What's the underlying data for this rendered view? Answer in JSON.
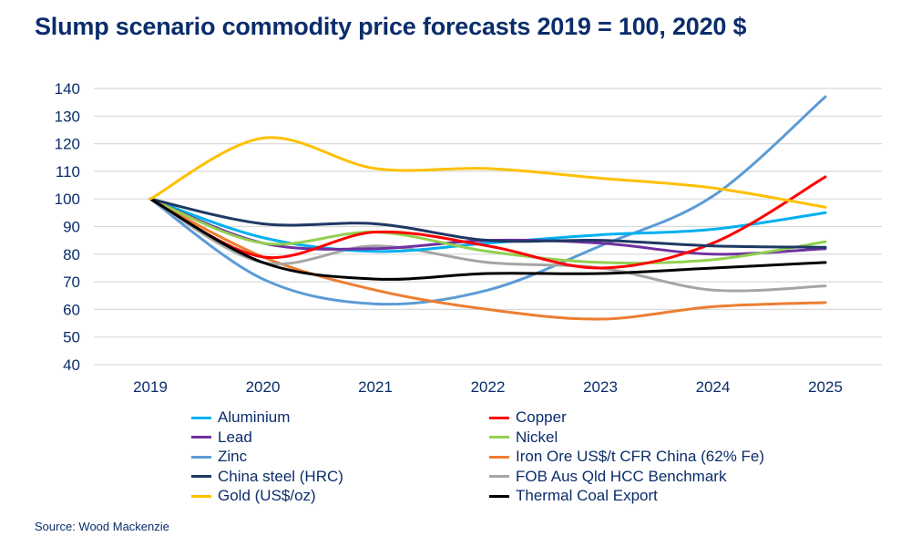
{
  "chart_data": {
    "type": "line",
    "title": "Slump scenario commodity price forecasts 2019 = 100, 2020 $",
    "xlabel": "",
    "ylabel": "",
    "categories": [
      "2019",
      "2020",
      "2021",
      "2022",
      "2023",
      "2024",
      "2025"
    ],
    "ylim": [
      40,
      140
    ],
    "yticks": [
      140,
      130,
      120,
      110,
      100,
      90,
      80,
      70,
      60,
      50,
      40
    ],
    "grid": true,
    "smooth": true,
    "legend_position": "bottom",
    "series": [
      {
        "name": "Aluminium",
        "color": "#00b0f0",
        "values": [
          100,
          86,
          81,
          84,
          87,
          89,
          95
        ]
      },
      {
        "name": "Copper",
        "color": "#ff0000",
        "values": [
          100,
          79,
          88,
          83,
          75,
          84,
          108
        ]
      },
      {
        "name": "Lead",
        "color": "#7030a0",
        "values": [
          100,
          84,
          82,
          85,
          84,
          80,
          82
        ]
      },
      {
        "name": "Nickel",
        "color": "#92d050",
        "values": [
          100,
          84,
          88,
          81,
          77,
          78,
          84.5
        ]
      },
      {
        "name": "Zinc",
        "color": "#5b9bd5",
        "values": [
          100,
          71,
          62,
          67,
          83,
          101,
          137
        ]
      },
      {
        "name": "Iron Ore US$/t CFR China (62% Fe)",
        "color": "#ed7d31",
        "values": [
          100,
          79,
          67,
          60,
          56.5,
          61,
          62.5
        ]
      },
      {
        "name": "China steel (HRC)",
        "color": "#1f3864",
        "values": [
          100,
          91,
          91,
          85,
          85,
          83,
          82.5
        ]
      },
      {
        "name": "FOB Aus Qld HCC Benchmark",
        "color": "#a5a5a5",
        "values": [
          100,
          77,
          83,
          77,
          75,
          67,
          68.5
        ]
      },
      {
        "name": "Gold (US$/oz)",
        "color": "#ffc000",
        "values": [
          100,
          122,
          111,
          111,
          107.5,
          104,
          97
        ]
      },
      {
        "name": "Thermal Coal Export",
        "color": "#000000",
        "values": [
          100,
          77,
          71,
          73,
          73,
          75,
          77
        ]
      }
    ]
  },
  "source": "Source: Wood Mackenzie"
}
